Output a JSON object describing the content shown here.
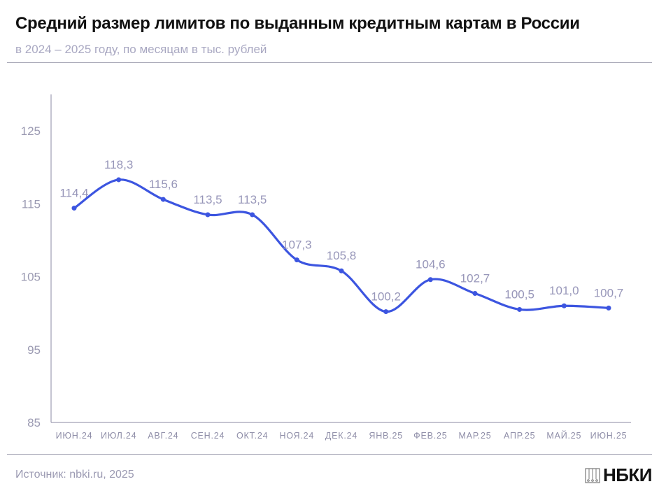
{
  "header": {
    "title": "Средний размер лимитов по выданным кредитным картам в России",
    "subtitle": "в 2024 – 2025 году, по месяцам в тыс. рублей"
  },
  "footer": {
    "source": "Источник: nbki.ru, 2025",
    "logo": "НБКИ"
  },
  "chart_data": {
    "type": "line",
    "title": "Средний размер лимитов по выданным кредитным картам в России",
    "subtitle": "в 2024 – 2025 году, по месяцам в тыс. рублей",
    "categories": [
      "ИЮН.24",
      "ИЮЛ.24",
      "АВГ.24",
      "СЕН.24",
      "ОКТ.24",
      "НОЯ.24",
      "ДЕК.24",
      "ЯНВ.25",
      "ФЕВ.25",
      "МАР.25",
      "АПР.25",
      "МАЙ.25",
      "ИЮН.25"
    ],
    "values": [
      114.4,
      118.3,
      115.6,
      113.5,
      113.5,
      107.3,
      105.8,
      100.2,
      104.6,
      102.7,
      100.5,
      101.0,
      100.7
    ],
    "data_labels": [
      "114,4",
      "118,3",
      "115,6",
      "113,5",
      "113,5",
      "107,3",
      "105,8",
      "100,2",
      "104,6",
      "102,7",
      "100,5",
      "101,0",
      "100,7"
    ],
    "yticks": [
      "85",
      "95",
      "105",
      "115",
      "125"
    ],
    "ylim": [
      85,
      130
    ],
    "grid": false,
    "smooth": true,
    "colors": {
      "line": "#3c55e0",
      "labels": "#9796b9",
      "axis": "#8b8aa3"
    }
  }
}
